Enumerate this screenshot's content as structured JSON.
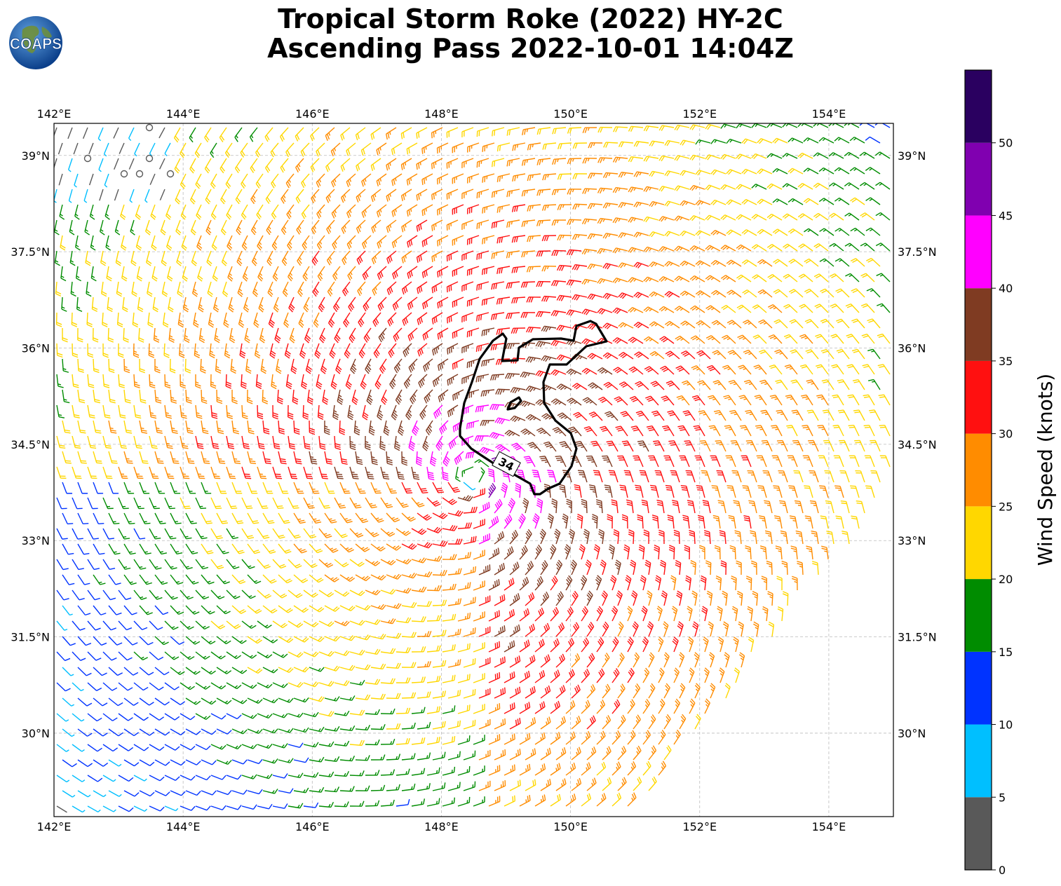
{
  "header": {
    "title_line1": "Tropical Storm Roke (2022) HY-2C",
    "title_line2": "Ascending Pass 2022-10-01 14:04Z"
  },
  "logo": {
    "text": "COAPS",
    "icon": "globe-icon"
  },
  "map": {
    "lon_range": [
      142,
      155
    ],
    "lat_range": [
      28.7,
      39.5
    ],
    "lon_ticks": [
      "142°E",
      "144°E",
      "146°E",
      "148°E",
      "150°E",
      "152°E",
      "154°E"
    ],
    "lat_ticks": [
      "39°N",
      "37.5°N",
      "36°N",
      "34.5°N",
      "33°N",
      "31.5°N",
      "30°N"
    ],
    "storm_center": {
      "lon": 148.5,
      "lat": 34.0
    },
    "swath_lat_south_edge_east": 34.4,
    "contour_label": "34"
  },
  "colorbar": {
    "label": "Wind Speed (knots)",
    "ticks": [
      "0",
      "5",
      "10",
      "15",
      "20",
      "25",
      "30",
      "35",
      "40",
      "45",
      "50"
    ],
    "bins": [
      {
        "min": 0,
        "max": 5,
        "color": "#595959"
      },
      {
        "min": 5,
        "max": 10,
        "color": "#00bfff"
      },
      {
        "min": 10,
        "max": 15,
        "color": "#0033ff"
      },
      {
        "min": 15,
        "max": 20,
        "color": "#008c00"
      },
      {
        "min": 20,
        "max": 25,
        "color": "#ffd700"
      },
      {
        "min": 25,
        "max": 30,
        "color": "#ff8c00"
      },
      {
        "min": 30,
        "max": 35,
        "color": "#ff1010"
      },
      {
        "min": 35,
        "max": 40,
        "color": "#7f3b22"
      },
      {
        "min": 40,
        "max": 45,
        "color": "#ff00ff"
      },
      {
        "min": 45,
        "max": 50,
        "color": "#8000b0"
      },
      {
        "min": 50,
        "max": 55,
        "color": "#2a0060"
      }
    ]
  }
}
